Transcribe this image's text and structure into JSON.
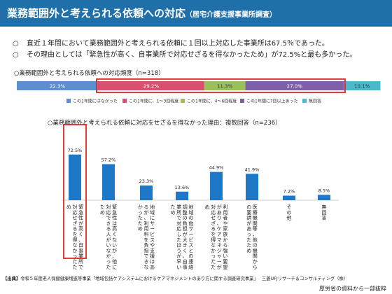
{
  "slide": {
    "title": "業務範囲外と考えられる依頼への対応",
    "subtitle": "（居宅介護支援事業所調査）",
    "bullets": [
      {
        "mark": "○",
        "text": "直近１年間において業務範囲外と考えられる依頼に１回以上対応した事業所は67.5％であった。"
      },
      {
        "mark": "○",
        "text": "その理由としては「緊急性が高く、自事業所で対応せざるを得なかったため」が72.5%と最も多かった。"
      }
    ],
    "source_label": "【出典】",
    "source_text": "令和５年度老人保健健康増進等事業「地域包括ケアシステムにおけるケアマネジメントのあり方に関する調査研究事業」",
    "source_org": "三菱UFJリサーチ＆コンサルティング（株）",
    "page_note": "厚労省の資料から一部抜粋",
    "colors": {
      "title_bg": "#1f6fa8",
      "highlight": "#e02424"
    }
  },
  "chart_data": [
    {
      "type": "bar",
      "orientation": "horizontal-stacked-100",
      "title": "○業務範囲外と考えられる依頼への対応頻度（n=318）",
      "series": [
        {
          "name": "この1年間にはなかった",
          "value": 22.3,
          "label": "22.3%",
          "color": "#5b8fd0"
        },
        {
          "name": "この1年間に、1～3回程度",
          "value": 29.2,
          "label": "29.2%",
          "color": "#d94f6f"
        },
        {
          "name": "この1年間に、4～6回程度",
          "value": 11.3,
          "label": "11.3%",
          "color": "#9bc05a"
        },
        {
          "name": "この1年間に7回以上あった",
          "value": 27.0,
          "label": "27.0%",
          "color": "#7f5fa8"
        },
        {
          "name": "無回答",
          "value": 10.1,
          "label": "10.1%",
          "color": "#4bb8cc"
        }
      ],
      "legend_position": "bottom"
    },
    {
      "type": "bar",
      "title": "○業務範囲外と考えられる依頼に対応をせざるを得なかった理由：複数回答（n=236）",
      "categories": [
        "緊急性が高く、自事業所で対応せざるを得なかったため",
        "緊急性は高くないが、他に対応できる人がいなかったため",
        "地域にサービスや支援はあるが、利用料を負担できなかったため",
        "地域の他サービスとの連絡調整の負担が大きく、自事業所で対応したほうが早いため",
        "利用者や家族から強い要望があり、ケアマネジャーが対応せざるを得なかったため",
        "医療機関等、他の機関からの要請があったため",
        "その他",
        "無回答"
      ],
      "values": [
        72.5,
        57.2,
        23.3,
        13.6,
        44.9,
        41.9,
        7.2,
        8.5
      ],
      "labels": [
        "72.5%",
        "57.2%",
        "23.3%",
        "13.6%",
        "44.9%",
        "41.9%",
        "7.2%",
        "8.5%"
      ],
      "color": "#1f77c8",
      "ylim": [
        0,
        100
      ]
    }
  ]
}
